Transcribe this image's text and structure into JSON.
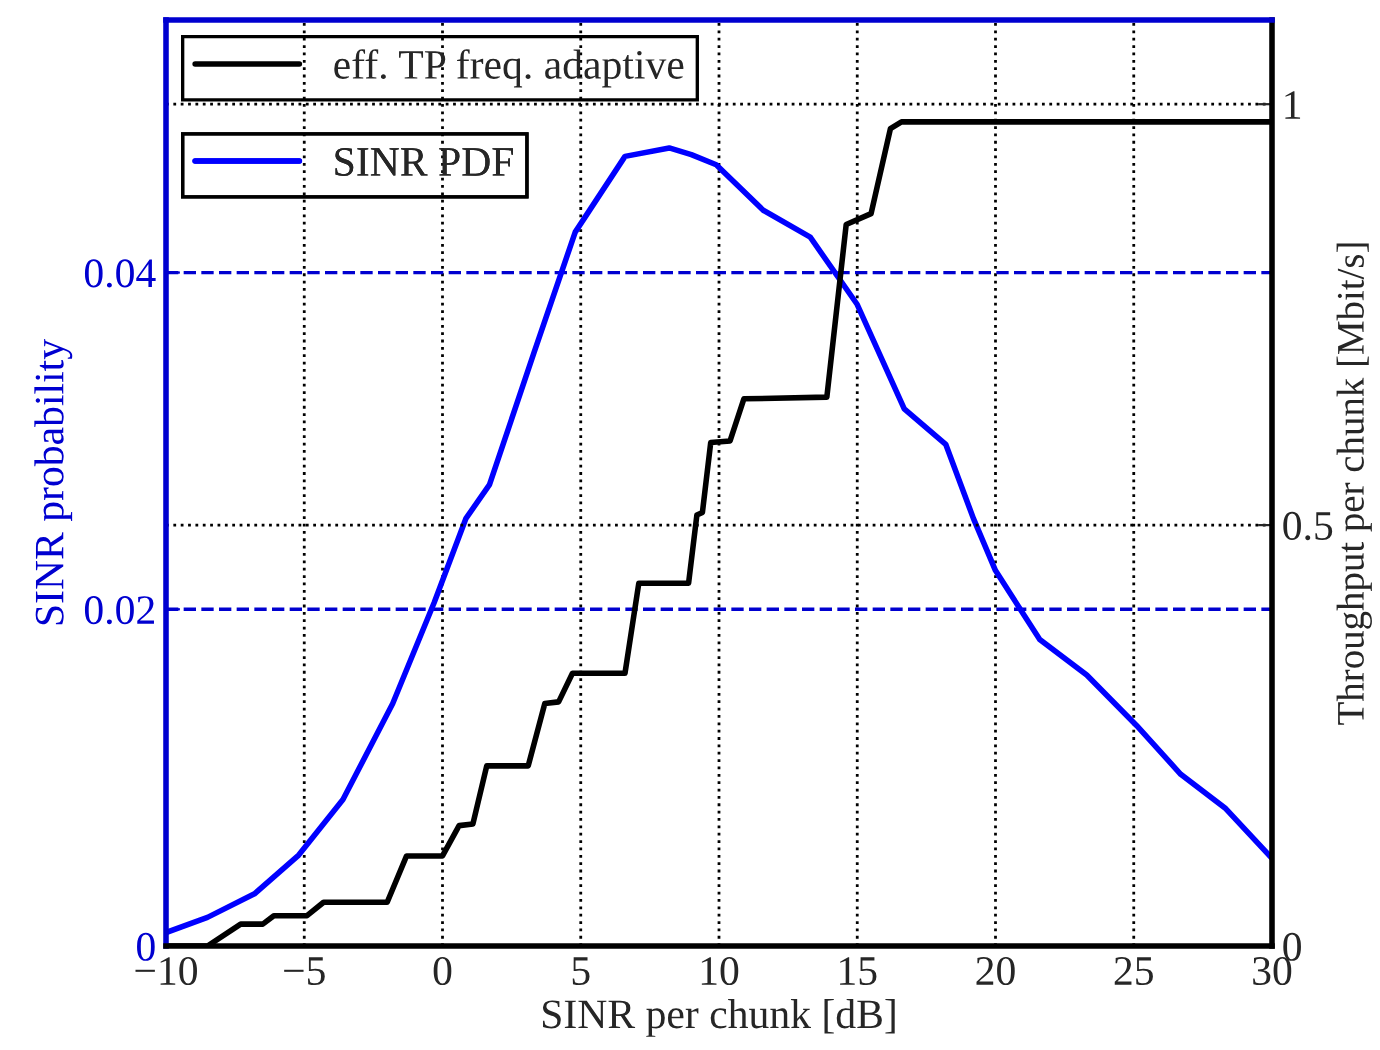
{
  "chart_data": {
    "type": "line",
    "xlabel": "SINR per chunk [dB]",
    "ylabel": "SINR probability",
    "y2label": "Throughput per chunk [Mbit/s]",
    "xlim": [
      -10,
      30
    ],
    "xticks": [
      {
        "value": -10,
        "label": "−10"
      },
      {
        "value": -5,
        "label": "−5"
      },
      0,
      5,
      10,
      15,
      20,
      25,
      30
    ],
    "ylim": [
      0,
      0.055
    ],
    "yticks": [
      0,
      0.02,
      0.04
    ],
    "y2lim": [
      0,
      1.1
    ],
    "y2ticks": [
      0,
      0.5,
      1
    ],
    "grid": true,
    "legend": "top left",
    "line_style": "solid",
    "marker": "none",
    "series": [
      {
        "name": "eff. TP freq. adaptive",
        "color": "#000000",
        "axis": "y2",
        "x": [
          -10,
          -8.5,
          -7.3,
          -6.5,
          -6.1,
          -4.9,
          -4.3,
          -2.0,
          -1.3,
          0.0,
          0.6,
          1.1,
          1.6,
          3.1,
          3.7,
          4.2,
          4.7,
          6.6,
          7.1,
          8.9,
          9.2,
          9.4,
          9.7,
          10.4,
          10.9,
          13.9,
          14.6,
          15.5,
          16.2,
          16.6,
          30
        ],
        "values": [
          0,
          0,
          0.026,
          0.026,
          0.036,
          0.036,
          0.052,
          0.052,
          0.107,
          0.107,
          0.143,
          0.145,
          0.214,
          0.214,
          0.288,
          0.29,
          0.324,
          0.324,
          0.431,
          0.431,
          0.512,
          0.515,
          0.598,
          0.6,
          0.65,
          0.652,
          0.857,
          0.87,
          0.971,
          0.979,
          0.979
        ]
      },
      {
        "name": "SINR PDF",
        "color": "#0000ff",
        "x": [
          -10,
          -8.5,
          -6.8,
          -5.2,
          -3.6,
          -1.8,
          -0.3,
          0.85,
          1.7,
          3.3,
          4.8,
          6.6,
          8.2,
          9.0,
          9.9,
          11.6,
          13.3,
          15.0,
          16.7,
          18.2,
          19.2,
          20.0,
          21.6,
          23.3,
          25.1,
          26.7,
          28.3,
          30
        ],
        "values": [
          0.0008,
          0.0017,
          0.0031,
          0.0054,
          0.0087,
          0.0144,
          0.0204,
          0.0254,
          0.0274,
          0.0352,
          0.0424,
          0.0469,
          0.0474,
          0.047,
          0.0464,
          0.0437,
          0.0421,
          0.0381,
          0.0319,
          0.0298,
          0.0254,
          0.0223,
          0.0182,
          0.0161,
          0.0131,
          0.0102,
          0.0082,
          0.0052
        ]
      }
    ]
  }
}
